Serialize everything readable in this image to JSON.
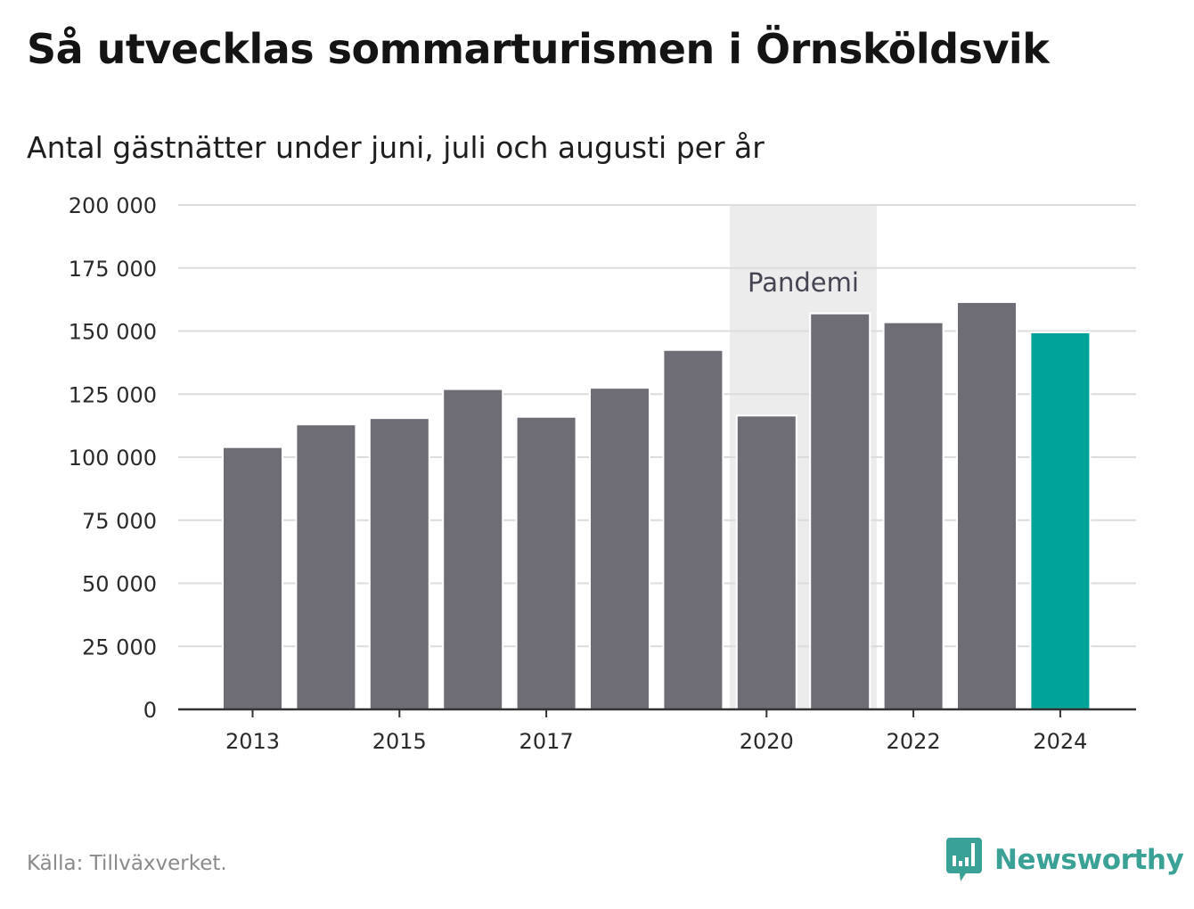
{
  "title": "Så utvecklas sommarturismen i Örnsköldsvik",
  "subtitle": "Antal gästnätter under juni, juli och augusti per år",
  "source": "Källa: Tillväxverket.",
  "brand": {
    "name": "Newsworthy",
    "icon": "newsworthy-logo-icon",
    "color": "#3aa196"
  },
  "chart_data": {
    "type": "bar",
    "x": [
      2013,
      2014,
      2015,
      2016,
      2017,
      2018,
      2019,
      2020,
      2021,
      2022,
      2023,
      2024
    ],
    "values": [
      104000,
      113000,
      115500,
      127000,
      116000,
      127500,
      142500,
      116500,
      157000,
      153500,
      161500,
      149500
    ],
    "x_tick_labels": [
      "2013",
      "2015",
      "2017",
      "2020",
      "2022",
      "2024"
    ],
    "y_ticks": [
      0,
      25000,
      50000,
      75000,
      100000,
      125000,
      150000,
      175000,
      200000
    ],
    "y_tick_labels": [
      "0",
      "25 000",
      "50 000",
      "75 000",
      "100 000",
      "125 000",
      "150 000",
      "175 000",
      "200 000"
    ],
    "ylim": [
      0,
      200000
    ],
    "grid": true,
    "colors": {
      "bar": "#6e6d75",
      "highlight": "#00a398",
      "highlight_year": 2024,
      "shade": "#ececec",
      "gridline": "#dcdcdc",
      "axis": "#333333"
    },
    "annotation": {
      "label": "Pandemi",
      "x_range": [
        2020,
        2021
      ]
    }
  }
}
